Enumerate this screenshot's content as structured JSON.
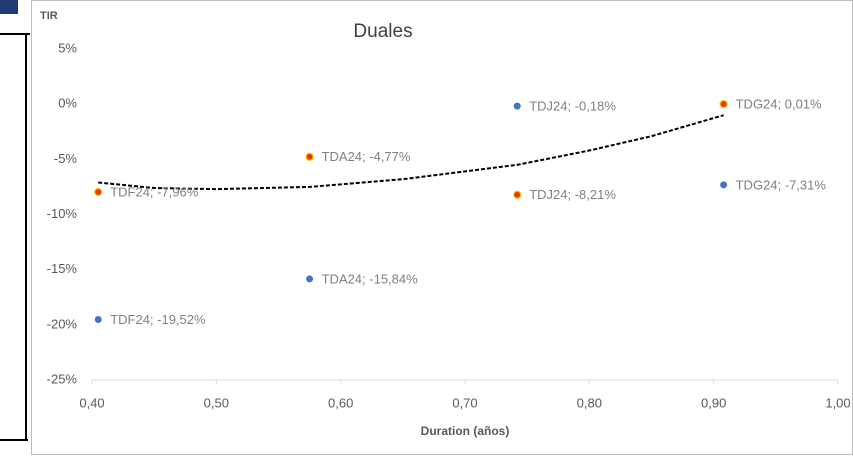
{
  "chart_data": {
    "type": "scatter",
    "title": "Duales",
    "ylabel": "TIR",
    "xlabel": "Duration (años)",
    "xlim": [
      0.4,
      1.0
    ],
    "xticks": [
      {
        "value": 0.4,
        "label": "0,40"
      },
      {
        "value": 0.5,
        "label": "0,50"
      },
      {
        "value": 0.6,
        "label": "0,60"
      },
      {
        "value": 0.7,
        "label": "0,70"
      },
      {
        "value": 0.8,
        "label": "0,80"
      },
      {
        "value": 0.9,
        "label": "0,90"
      },
      {
        "value": 1.0,
        "label": "1,00"
      }
    ],
    "ylim": [
      -25,
      5
    ],
    "yticks": [
      {
        "value": 5,
        "label": "5%"
      },
      {
        "value": 0,
        "label": "0%"
      },
      {
        "value": -5,
        "label": "-5%"
      },
      {
        "value": -10,
        "label": "-10%"
      },
      {
        "value": -15,
        "label": "-15%"
      },
      {
        "value": -20,
        "label": "-20%"
      },
      {
        "value": -25,
        "label": "-25%"
      }
    ],
    "grid": false,
    "series": [
      {
        "color": "#4472c4",
        "x": [
          0.405,
          0.575,
          0.742,
          0.908
        ],
        "values": [
          -19.52,
          -15.84,
          -0.18,
          -7.31
        ],
        "value_labels": [
          "TDF24; -19,52%",
          "TDA24; -15,84%",
          "TDJ24; -0,18%",
          "TDG24; -7,31%"
        ]
      },
      {
        "color": "#e8380d",
        "x": [
          0.405,
          0.575,
          0.742,
          0.908
        ],
        "values": [
          -7.96,
          -4.77,
          -8.21,
          0.01
        ],
        "value_labels": [
          "TDF24; -7,96%",
          "TDA24; -4,77%",
          "TDJ24; -8,21%",
          "TDG24; 0,01%"
        ]
      }
    ],
    "trendline": {
      "color": "#000000",
      "x": [
        0.405,
        0.45,
        0.5,
        0.575,
        0.65,
        0.742,
        0.8,
        0.85,
        0.908
      ],
      "values": [
        -7.1,
        -7.6,
        -7.7,
        -7.5,
        -6.8,
        -5.5,
        -4.2,
        -2.9,
        -1.0
      ]
    }
  }
}
